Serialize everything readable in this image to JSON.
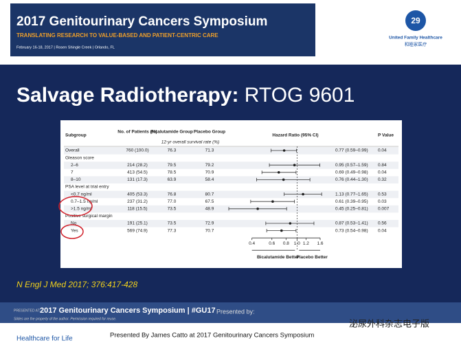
{
  "banner": {
    "title": "2017 Genitourinary Cancers Symposium",
    "subtitle": "TRANSLATING RESEARCH TO VALUE-BASED AND PATIENT-CENTRIC CARE",
    "info": "February 16-18, 2017 | Rosen Shingle Creek | Orlando, FL"
  },
  "logo": {
    "name": "United Family Healthcare",
    "name_cn": "和睦家医疗"
  },
  "slide": {
    "title_bold": "Salvage Radiotherapy:",
    "title_rest": "RTOG 9601",
    "citation": "N Engl J Med 2017; 376:417-428"
  },
  "table": {
    "headers": [
      "Subgroup",
      "No. of Patients (%)",
      "Bicalutamide Group",
      "Placebo Group",
      "Hazard Ratio (95% CI)",
      "P Value"
    ],
    "subheader": "12-yr overall survival rate (%)",
    "rows": [
      {
        "cells": [
          "Overall",
          "760 (100.0)",
          "76.3",
          "71.3",
          "0.77 (0.59–0.99)",
          "0.04"
        ],
        "hr": 0.77,
        "ci": [
          0.59,
          0.99
        ]
      },
      {
        "cells": [
          "Gleason score"
        ]
      },
      {
        "cells": [
          "2–6",
          "214 (28.2)",
          "79.5",
          "79.2",
          "0.95 (0.57–1.59)",
          "0.84"
        ],
        "hr": 0.95,
        "ci": [
          0.57,
          1.59
        ]
      },
      {
        "cells": [
          "7",
          "413 (54.5)",
          "78.5",
          "70.9",
          "0.69 (0.49–0.98)",
          "0.04"
        ],
        "hr": 0.69,
        "ci": [
          0.49,
          0.98
        ]
      },
      {
        "cells": [
          "8–10",
          "131 (17.3)",
          "63.9",
          "58.4",
          "0.76 (0.44–1.30)",
          "0.32"
        ],
        "hr": 0.76,
        "ci": [
          0.44,
          1.3
        ]
      },
      {
        "cells": [
          "PSA level at trial entry"
        ]
      },
      {
        "cells": [
          "<0.7 ng/ml",
          "405 (53.3)",
          "76.8",
          "80.7",
          "1.13 (0.77–1.65)",
          "0.53"
        ],
        "hr": 1.13,
        "ci": [
          0.77,
          1.65
        ]
      },
      {
        "cells": [
          "0.7–1.5 ng/ml",
          "237 (31.2)",
          "77.0",
          "67.5",
          "0.61 (0.39–0.95)",
          "0.03"
        ],
        "hr": 0.61,
        "ci": [
          0.39,
          0.95
        ]
      },
      {
        "cells": [
          ">1.5 ng/ml",
          "118 (15.5)",
          "73.5",
          "48.9",
          "0.45 (0.25–0.81)",
          "0.007"
        ],
        "hr": 0.45,
        "ci": [
          0.25,
          0.81
        ]
      },
      {
        "cells": [
          "Positive surgical margin"
        ]
      },
      {
        "cells": [
          "No",
          "191 (25.1)",
          "73.5",
          "72.9",
          "0.87 (0.53–1.41)",
          "0.56"
        ],
        "hr": 0.87,
        "ci": [
          0.53,
          1.41
        ]
      },
      {
        "cells": [
          "Yes",
          "569 (74.9)",
          "77.3",
          "70.7",
          "0.73 (0.54–0.98)",
          "0.04"
        ],
        "hr": 0.73,
        "ci": [
          0.54,
          0.98
        ]
      }
    ],
    "xlim": [
      0.25,
      2.0
    ],
    "xticks": [
      0.4,
      0.6,
      0.8,
      {
        "value": 1.0,
        "label": "1.0"
      },
      1.2,
      1.6
    ],
    "left_label": "Bicalutamide Better",
    "right_label": "Placebo Better"
  },
  "footer_bar": {
    "presented_at": "PRESENTED AT:",
    "meeting": "2017 Genitourinary Cancers Symposium | #GU17",
    "note": "Slides are the property of the author. Permission required for reuse.",
    "presented_by": "Presented by:"
  },
  "footer": {
    "tagline": "Healthcare for Life",
    "credit": "Presented By James Catto at 2017 Genitourinary Cancers Symposium",
    "watermark": "泌尿外科杂志电子版"
  }
}
